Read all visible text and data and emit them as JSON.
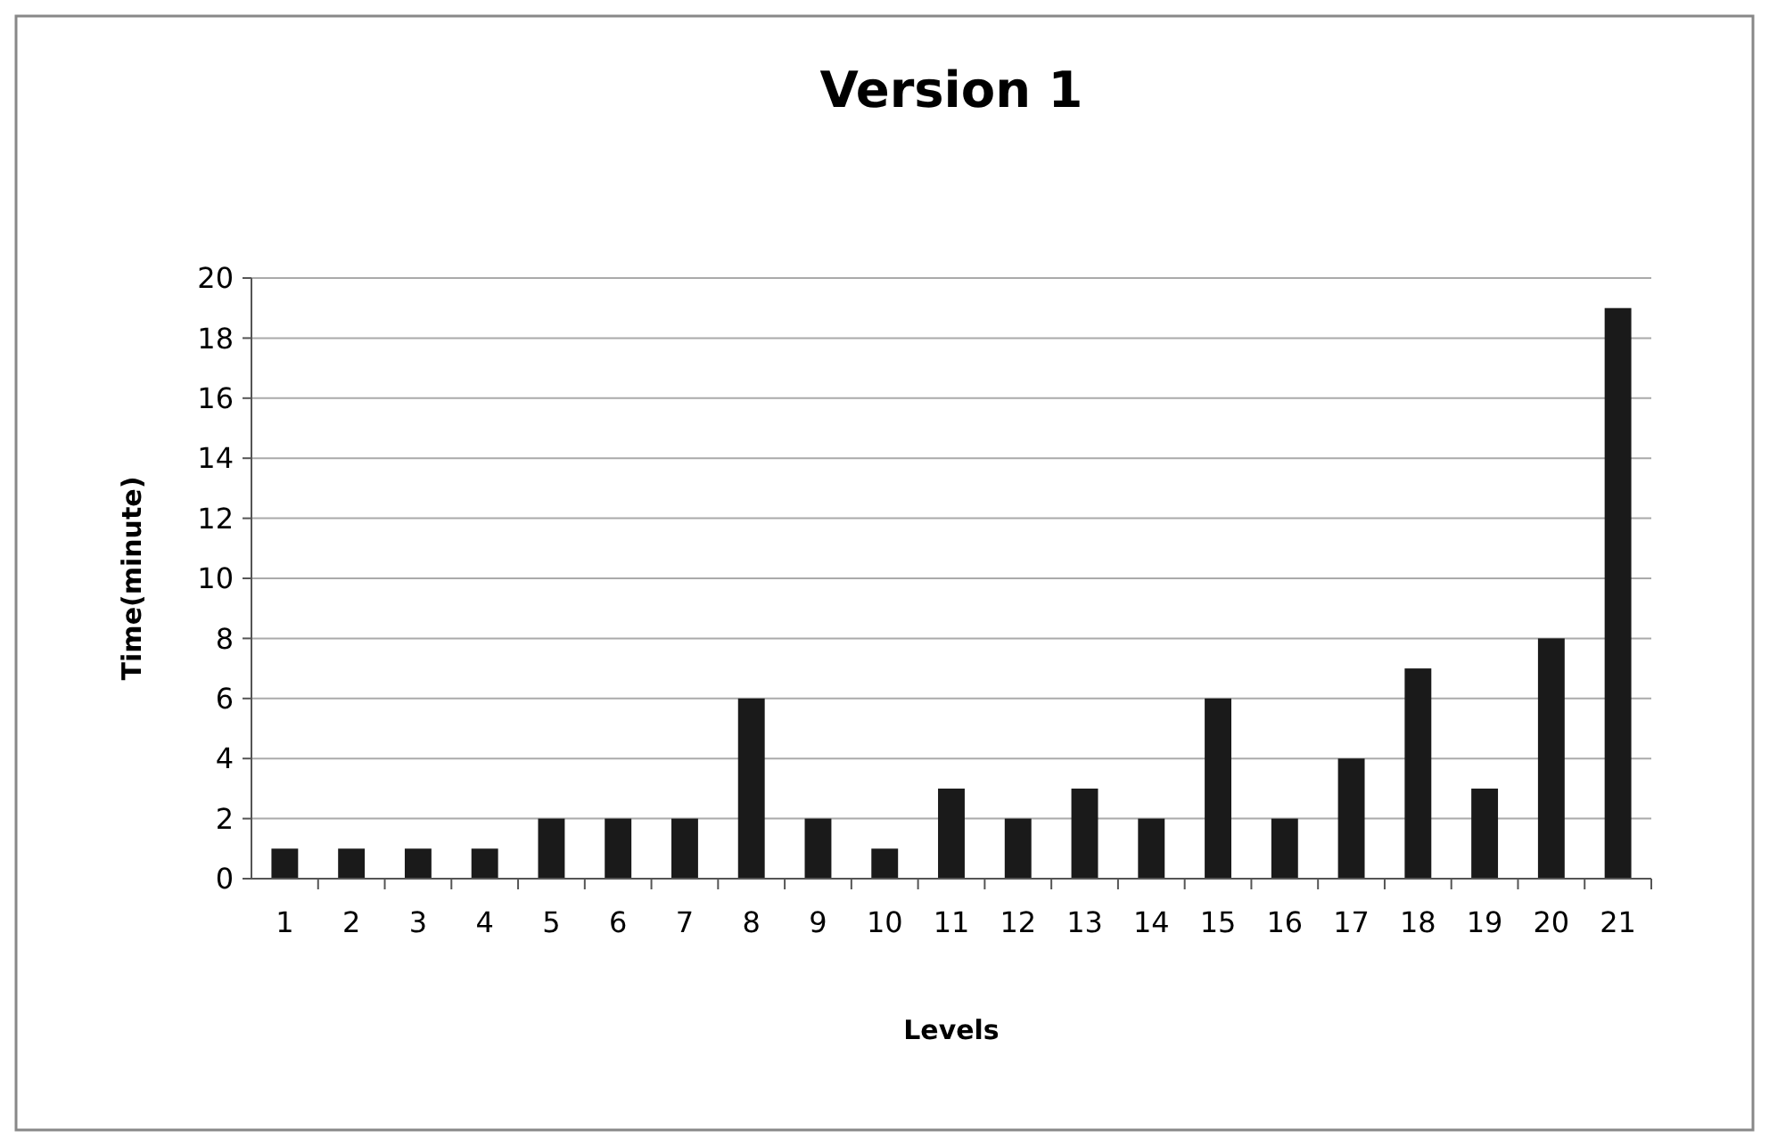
{
  "chart_data": {
    "type": "bar",
    "title": "Version 1",
    "xlabel": "Levels",
    "ylabel": "Time(minute)",
    "categories": [
      "1",
      "2",
      "3",
      "4",
      "5",
      "6",
      "7",
      "8",
      "9",
      "10",
      "11",
      "12",
      "13",
      "14",
      "15",
      "16",
      "17",
      "18",
      "19",
      "20",
      "21"
    ],
    "values": [
      1,
      1,
      1,
      1,
      2,
      2,
      2,
      6,
      2,
      1,
      3,
      2,
      3,
      2,
      6,
      2,
      4,
      7,
      3,
      8,
      19
    ],
    "color": "#1a1a1a",
    "ylim": [
      0,
      20
    ],
    "yticks": [
      0,
      2,
      4,
      6,
      8,
      10,
      12,
      14,
      16,
      18,
      20
    ],
    "grid": "y"
  }
}
